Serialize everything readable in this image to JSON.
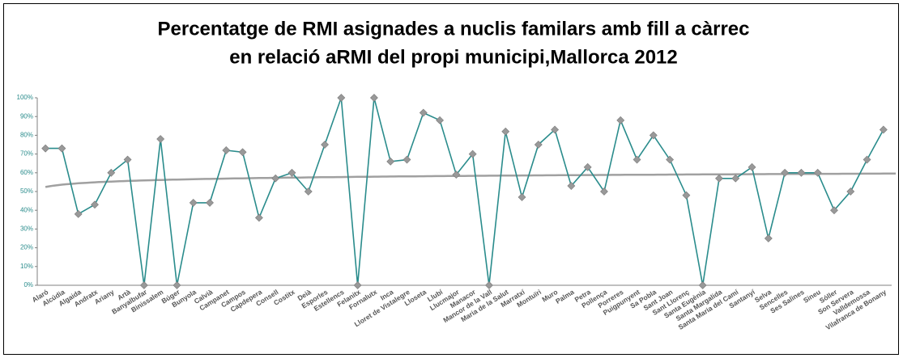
{
  "chart_data": {
    "type": "line",
    "title": [
      "Percentatge de RMI asignades a nuclis familars amb fill a càrrec",
      "en relació aRMI del propi municipi,Mallorca 2012"
    ],
    "categories": [
      "Alaró",
      "Alcúdia",
      "Algaida",
      "Andratx",
      "Ariany",
      "Artà",
      "Banyalbufar",
      "Binissalem",
      "Búger",
      "Bunyola",
      "Calvià",
      "Campanet",
      "Campos",
      "Capdepera",
      "Consell",
      "Costitx",
      "Deià",
      "Esporles",
      "Estellencs",
      "Felanitx",
      "Fornalutx",
      "Inca",
      "Lloret de Vistalegre",
      "Lloseta",
      "Llubí",
      "Llucmajor",
      "Manacor",
      "Mancor de la Vall",
      "Maria de la Salut",
      "Marratxí",
      "Montuïri",
      "Muro",
      "Palma",
      "Petra",
      "Pollença",
      "Porreres",
      "Puigpunyent",
      "Sa Pobla",
      "Sant Joan",
      "Sant Llorenç",
      "Santa Eugènia",
      "Santa Margalida",
      "Santa Maria del Camí",
      "Santanyí",
      "Selva",
      "Sencelles",
      "Ses Salines",
      "Sineu",
      "Sóller",
      "Son Servera",
      "Valldemossa",
      "Vilafranca de Bonany"
    ],
    "values": [
      73,
      73,
      38,
      43,
      60,
      67,
      0,
      78,
      0,
      44,
      44,
      72,
      71,
      36,
      57,
      60,
      50,
      75,
      100,
      0,
      100,
      66,
      67,
      92,
      88,
      59,
      70,
      0,
      82,
      47,
      75,
      83,
      53,
      63,
      50,
      88,
      67,
      80,
      67,
      48,
      0,
      57,
      57,
      63,
      25,
      60,
      60,
      60,
      40,
      50,
      67,
      83
    ],
    "color": "#2a8c8c",
    "marker_color": "#999999",
    "trendline": {
      "type": "logarithmic",
      "color": "#a0a0a0"
    },
    "ylim": [
      0,
      100
    ],
    "yticks": [
      {
        "value": 0,
        "label": "0%"
      },
      {
        "value": 10,
        "label": "10%"
      },
      {
        "value": 20,
        "label": "20%"
      },
      {
        "value": 30,
        "label": "30%"
      },
      {
        "value": 40,
        "label": "40%"
      },
      {
        "value": 50,
        "label": "50%"
      },
      {
        "value": 60,
        "label": "60%"
      },
      {
        "value": 70,
        "label": "70%"
      },
      {
        "value": 80,
        "label": "80%"
      },
      {
        "value": 90,
        "label": "90%"
      },
      {
        "value": 100,
        "label": "100%"
      }
    ],
    "grid": false
  }
}
